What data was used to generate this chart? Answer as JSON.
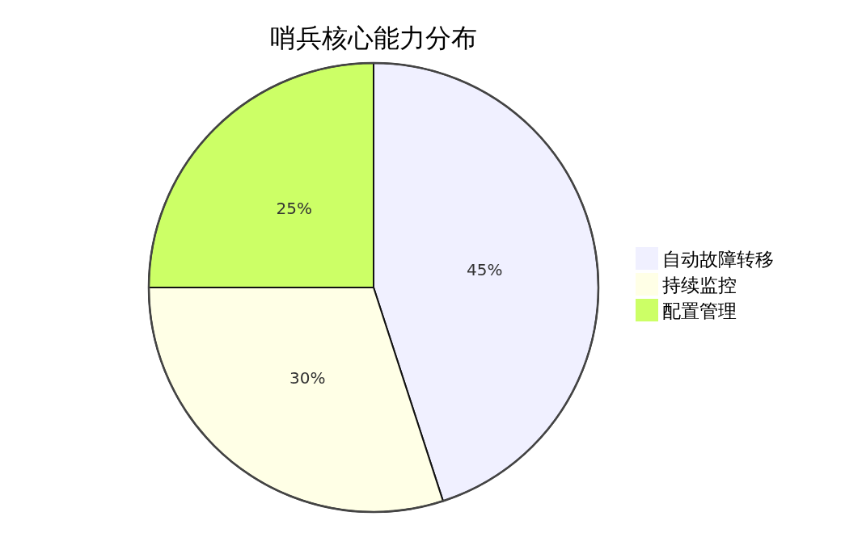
{
  "chart_data": {
    "type": "pie",
    "title": "哨兵核心能力分布",
    "categories": [
      "自动故障转移",
      "持续监控",
      "配置管理"
    ],
    "values": [
      45,
      30,
      25
    ],
    "value_labels": [
      "45%",
      "30%",
      "25%"
    ],
    "colors": [
      "#f0f0ff",
      "#ffffe6",
      "#ccff66"
    ],
    "legend": "right"
  }
}
